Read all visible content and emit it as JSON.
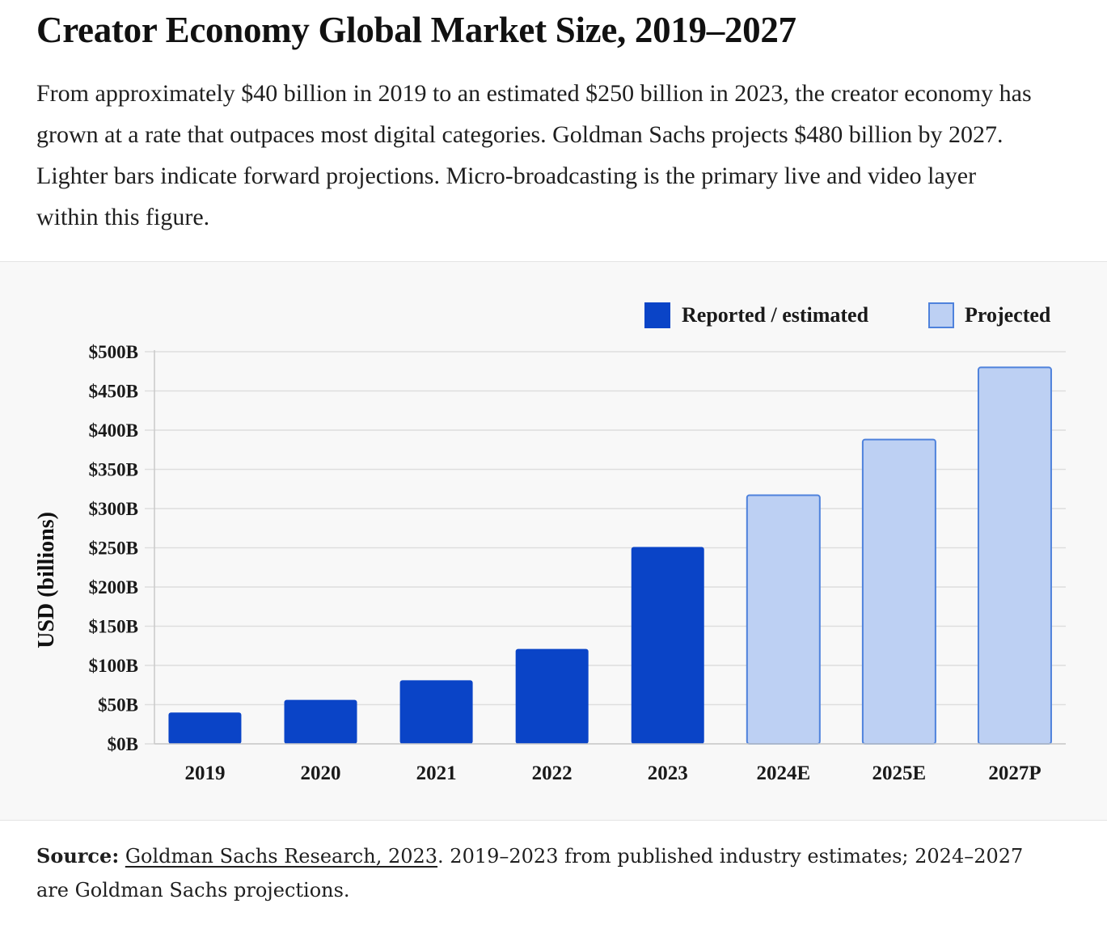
{
  "header": {
    "title": "Creator Economy Global Market Size, 2019–2027",
    "description": "From approximately $40 billion in 2019 to an estimated $250 billion in 2023, the creator economy has grown at a rate that outpaces most digital categories. Goldman Sachs projects $480 billion by 2027. Lighter bars indicate forward projections. Micro-broadcasting is the primary live and video layer within this figure."
  },
  "chart_data": {
    "type": "bar",
    "title": "",
    "xlabel": "",
    "ylabel": "USD (billions)",
    "ylim": [
      0,
      500
    ],
    "yticks": [
      0,
      50,
      100,
      150,
      200,
      250,
      300,
      350,
      400,
      450,
      500
    ],
    "ytick_labels": [
      "$0B",
      "$50B",
      "$100B",
      "$150B",
      "$200B",
      "$250B",
      "$300B",
      "$350B",
      "$400B",
      "$450B",
      "$500B"
    ],
    "grid": true,
    "legend_position": "top-right",
    "categories": [
      "2019",
      "2020",
      "2021",
      "2022",
      "2023",
      "2024E",
      "2025E",
      "2027P"
    ],
    "values": [
      40,
      56,
      81,
      121,
      251,
      317,
      388,
      480
    ],
    "bar_kind": [
      "reported",
      "reported",
      "reported",
      "reported",
      "reported",
      "projected",
      "projected",
      "projected"
    ],
    "series": [
      {
        "name": "Reported / estimated",
        "kind": "reported",
        "color": "#0a44c7"
      },
      {
        "name": "Projected",
        "kind": "projected",
        "color": "#bdd0f3",
        "border": "#4f82dc"
      }
    ]
  },
  "footer": {
    "source_label": "Source:",
    "source_link": "Goldman Sachs Research, 2023",
    "source_note": ". 2019–2023 from published industry estimates; 2024–2027 are Goldman Sachs projections."
  },
  "colors": {
    "reported": "#0a44c7",
    "projected_fill": "#bdd0f3",
    "projected_border": "#4f82dc",
    "grid": "#dedede",
    "panel_bg": "#f8f8f8"
  }
}
